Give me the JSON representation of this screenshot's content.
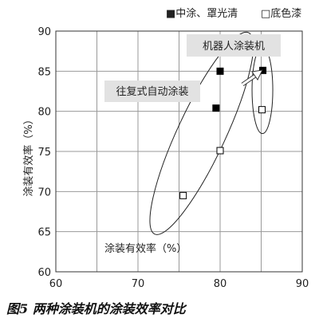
{
  "caption": "图5 两种涂装机的涂装效率对比",
  "chart_data": {
    "type": "scatter",
    "title": "",
    "xlabel": "涂装有效率（%）",
    "ylabel": "涂装有效率（%）",
    "xlim": [
      60,
      90
    ],
    "ylim": [
      60,
      90
    ],
    "xticks": [
      "60",
      "70",
      "80",
      "90"
    ],
    "yticks": [
      "90",
      "85",
      "80",
      "75",
      "70",
      "65",
      "60"
    ],
    "grid": true,
    "legend_position": "top-right",
    "series": [
      {
        "name": "■中涂、罩光清",
        "marker": "filled-square",
        "color": "#000000",
        "points": [
          [
            80.0,
            85.0
          ],
          [
            79.5,
            80.4
          ],
          [
            85.2,
            85.1
          ]
        ]
      },
      {
        "name": "□底色漆",
        "marker": "open-square",
        "color": "#000000",
        "points": [
          [
            80.0,
            75.1
          ],
          [
            75.5,
            69.5
          ],
          [
            85.1,
            80.2
          ]
        ]
      }
    ],
    "annotations": [
      {
        "text": "往复式自动涂装"
      },
      {
        "text": "机器人涂装机"
      }
    ]
  }
}
